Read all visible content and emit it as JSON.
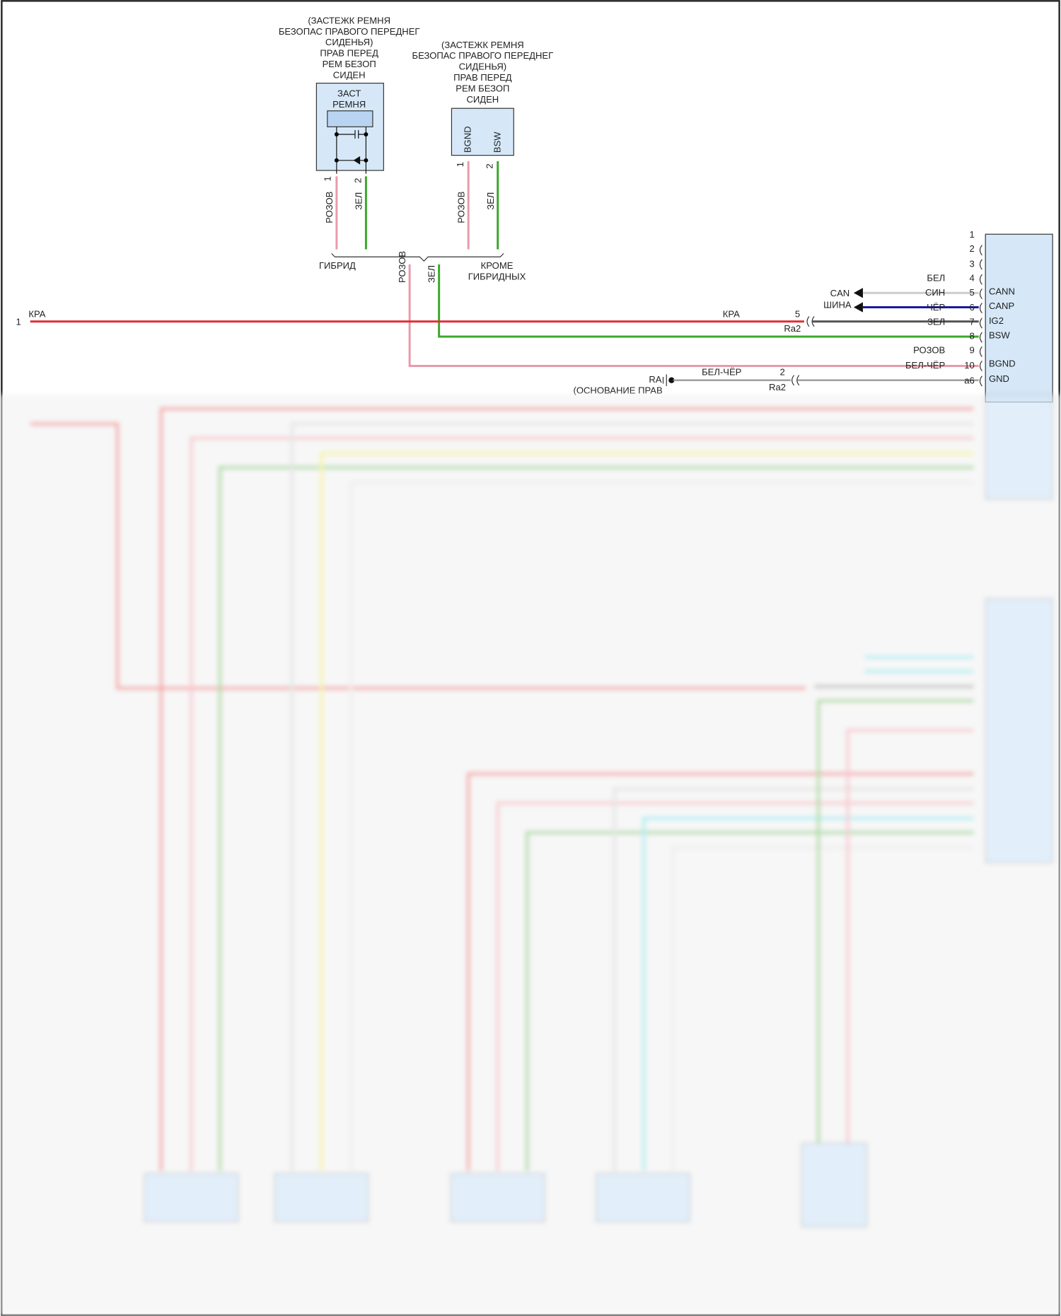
{
  "connector_a": {
    "title_lines": [
      "(ЗАСТЕЖК РЕМНЯ",
      "БЕЗОПАС ПРАВОГО ПЕРЕДНЕГ",
      "СИДЕНЬЯ)",
      "ПРАВ ПЕРЕД",
      "РЕМ БЕЗОП",
      "СИДЕН"
    ],
    "inner_lines": [
      "ЗАСТ",
      "РЕМНЯ"
    ],
    "pins": [
      "1",
      "2"
    ],
    "wires": [
      "РОЗОВ",
      "ЗЕЛ"
    ]
  },
  "connector_b": {
    "title_lines": [
      "(ЗАСТЕЖК РЕМНЯ",
      "БЕЗОПАС ПРАВОГО ПЕРЕДНЕГ",
      "СИДЕНЬЯ)",
      "ПРАВ ПЕРЕД",
      "РЕМ БЕЗОП",
      "СИДЕН"
    ],
    "pin_names": [
      "BGND",
      "BSW"
    ],
    "pins": [
      "1",
      "2"
    ],
    "wires": [
      "РОЗОВ",
      "ЗЕЛ"
    ]
  },
  "branch": {
    "hybrid": "ГИБРИД",
    "non_hybrid": [
      "КРОМЕ",
      "ГИБРИДНЫХ"
    ],
    "wires": [
      "РОЗОВ",
      "ЗЕЛ"
    ]
  },
  "power": {
    "pin": "1",
    "wire_left": "КРА",
    "wire_right": "КРА",
    "conn_pin": "5",
    "conn": "Ra2"
  },
  "can": {
    "lines": [
      "CAN",
      "ШИНА"
    ]
  },
  "ground": {
    "name": "RA",
    "desc": "(ОСНОВАНИЕ ПРАВ",
    "wire": "БЕЛ-ЧЁР",
    "conn_pin": "2",
    "conn": "Ra2"
  },
  "module": {
    "pins": [
      {
        "num": "1",
        "wire": "",
        "name": ""
      },
      {
        "num": "2",
        "wire": "",
        "name": ""
      },
      {
        "num": "3",
        "wire": "",
        "name": ""
      },
      {
        "num": "4",
        "wire": "БЕЛ",
        "name": "CANN"
      },
      {
        "num": "5",
        "wire": "СИН",
        "name": "CANP"
      },
      {
        "num": "6",
        "wire": "ЧЁР",
        "name": "IG2"
      },
      {
        "num": "7",
        "wire": "ЗЕЛ",
        "name": "BSW"
      },
      {
        "num": "8",
        "wire": "",
        "name": ""
      },
      {
        "num": "9",
        "wire": "РОЗОВ",
        "name": "BGND"
      },
      {
        "num": "10",
        "wire": "БЕЛ-ЧЁР",
        "name": "GND"
      },
      {
        "num": "a6",
        "wire": "",
        "name": ""
      }
    ]
  },
  "colors": {
    "red": "#e0303a",
    "pink": "#e89aaa",
    "green": "#3aa82a",
    "blue": "#1a1aa0",
    "gray": "#666666",
    "light": "#cccccc",
    "box": "#d6e8f8",
    "yellow": "#f5f07a",
    "cyan": "#8ee8f0"
  }
}
